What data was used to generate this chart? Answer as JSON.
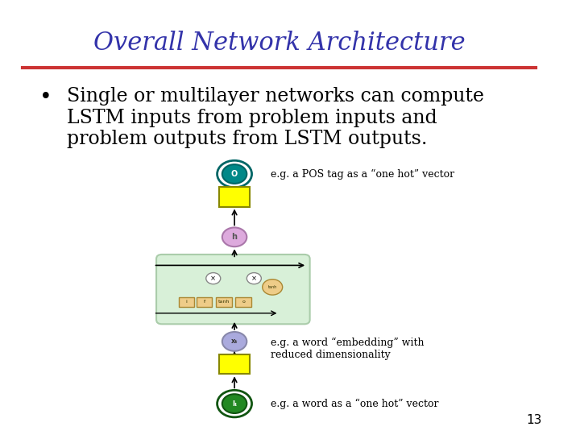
{
  "title": "Overall Network Architecture",
  "title_color": "#3333aa",
  "title_fontsize": 22,
  "bullet_text": "Single or multilayer networks can compute\nLSTM inputs from problem inputs and\nproblem outputs from LSTM outputs.",
  "bullet_fontsize": 17,
  "bg_color": "#ffffff",
  "separator_color": "#cc3333",
  "page_number": "13",
  "annotation1": "e.g. a POS tag as a “one hot” vector",
  "annotation2": "e.g. a word “embedding” with\nreduced dimensionality",
  "annotation3": "e.g. a word as a “one hot” vector",
  "yellow_color": "#ffff00",
  "lstm_bg_color": "#d8f0d8",
  "lstm_border_color": "#aaccaa",
  "gate_color": "#eecc88"
}
